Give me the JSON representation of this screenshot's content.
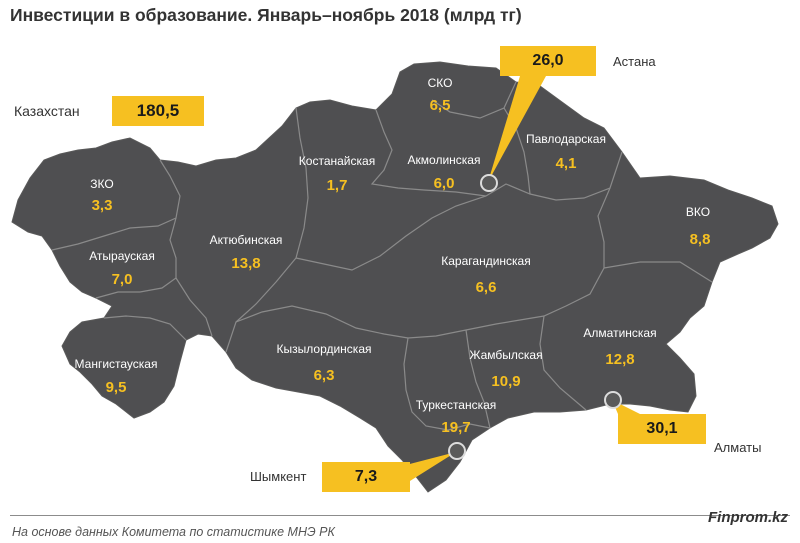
{
  "title": "Инвестиции  в образование. Январь–ноябрь 2018 (млрд тг)",
  "total": {
    "label": "Казахстан",
    "value": "180,5"
  },
  "regions": [
    {
      "id": "zko",
      "name": "ЗКО",
      "value": "3,3"
    },
    {
      "id": "atyrau",
      "name": "Атырауская",
      "value": "7,0"
    },
    {
      "id": "mangystau",
      "name": "Мангистауская",
      "value": "9,5"
    },
    {
      "id": "aktobe",
      "name": "Актюбинская",
      "value": "13,8"
    },
    {
      "id": "kostanay",
      "name": "Костанайская",
      "value": "1,7"
    },
    {
      "id": "sko",
      "name": "СКО",
      "value": "6,5"
    },
    {
      "id": "akmola",
      "name": "Акмолинская",
      "value": "6,0"
    },
    {
      "id": "pavlodar",
      "name": "Павлодарская",
      "value": "4,1"
    },
    {
      "id": "vko",
      "name": "ВКО",
      "value": "8,8"
    },
    {
      "id": "karaganda",
      "name": "Карагандинская",
      "value": "6,6"
    },
    {
      "id": "kyzylorda",
      "name": "Кызылординская",
      "value": "6,3"
    },
    {
      "id": "zhambyl",
      "name": "Жамбылская",
      "value": "10,9"
    },
    {
      "id": "almaty_obl",
      "name": "Алматинская",
      "value": "12,8"
    },
    {
      "id": "turkestan",
      "name": "Туркестанская",
      "value": "19,7"
    }
  ],
  "cities": [
    {
      "id": "astana",
      "name": "Астана",
      "value": "26,0"
    },
    {
      "id": "almaty",
      "name": "Алматы",
      "value": "30,1"
    },
    {
      "id": "shymkent",
      "name": "Шымкент",
      "value": "7,3"
    }
  ],
  "footer": {
    "source": "На основе данных   Комитета по статистике МНЭ РК",
    "brand": "Finprom.kz"
  },
  "colors": {
    "map_fill": "#4f4f51",
    "border": "#8a8a8a",
    "accent": "#f6c021"
  }
}
